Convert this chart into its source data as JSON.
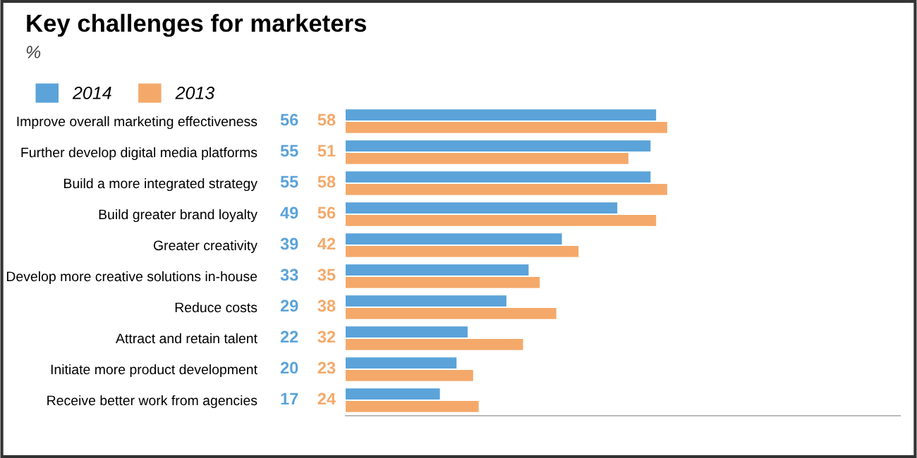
{
  "chart_data": {
    "type": "bar",
    "orientation": "horizontal",
    "title": "Key challenges for marketers",
    "subtitle": "%",
    "categories": [
      "Improve overall marketing effectiveness",
      "Further develop digital media platforms",
      "Build a more integrated strategy",
      "Build greater brand loyalty",
      "Greater creativity",
      "Develop more creative solutions in-house",
      "Reduce costs",
      "Attract and retain talent",
      "Initiate more product development",
      "Receive better work from agencies"
    ],
    "series": [
      {
        "name": "2014",
        "color": "#5ba3d9",
        "values": [
          56,
          55,
          55,
          49,
          39,
          33,
          29,
          22,
          20,
          17
        ]
      },
      {
        "name": "2013",
        "color": "#f4a96a",
        "values": [
          58,
          51,
          58,
          56,
          42,
          35,
          38,
          32,
          23,
          24
        ]
      }
    ],
    "xlim": [
      0,
      100
    ],
    "tick_labels": "y",
    "data_labels": true,
    "legend": "top left",
    "grid": false
  }
}
